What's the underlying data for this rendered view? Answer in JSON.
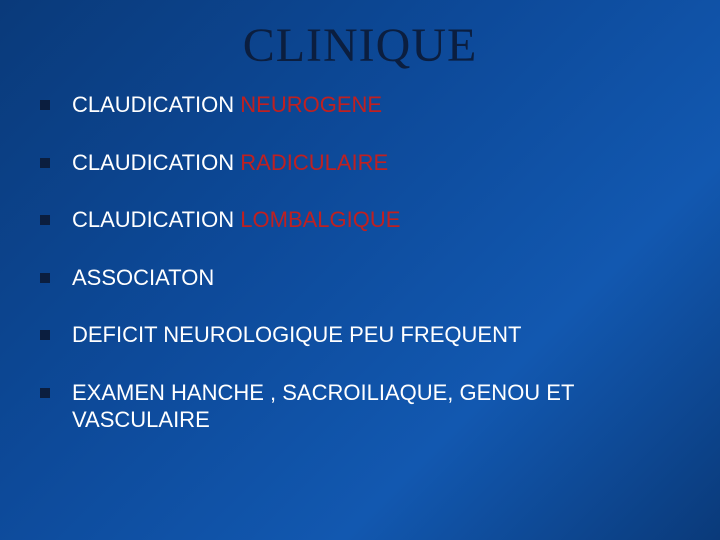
{
  "background_gradient": [
    "#0a3a7a",
    "#0d4a9a",
    "#1258b0",
    "#0a3a7a"
  ],
  "title": {
    "text": "CLINIQUE",
    "color": "#0b1e3f",
    "fontsize": 48,
    "font_family": "Times New Roman"
  },
  "bullet": {
    "color": "#0b1e3f",
    "size": 10
  },
  "item_text": {
    "color": "#ffffff",
    "highlight_color": "#c02020",
    "fontsize": 22,
    "font_family": "Arial",
    "line_spacing": 30
  },
  "items": [
    {
      "segments": [
        {
          "text": "CLAUDICATION ",
          "hl": false
        },
        {
          "text": "NEUROGENE",
          "hl": true
        }
      ]
    },
    {
      "segments": [
        {
          "text": "CLAUDICATION ",
          "hl": false
        },
        {
          "text": "RADICULAIRE",
          "hl": true
        }
      ]
    },
    {
      "segments": [
        {
          "text": "CLAUDICATION ",
          "hl": false
        },
        {
          "text": "LOMBALGIQUE",
          "hl": true
        }
      ]
    },
    {
      "segments": [
        {
          "text": "ASSOCIATON",
          "hl": false
        }
      ]
    },
    {
      "segments": [
        {
          "text": "DEFICIT NEUROLOGIQUE PEU FREQUENT",
          "hl": false
        }
      ]
    },
    {
      "segments": [
        {
          "text": "EXAMEN HANCHE , SACROILIAQUE, GENOU ET VASCULAIRE",
          "hl": false
        }
      ]
    }
  ]
}
